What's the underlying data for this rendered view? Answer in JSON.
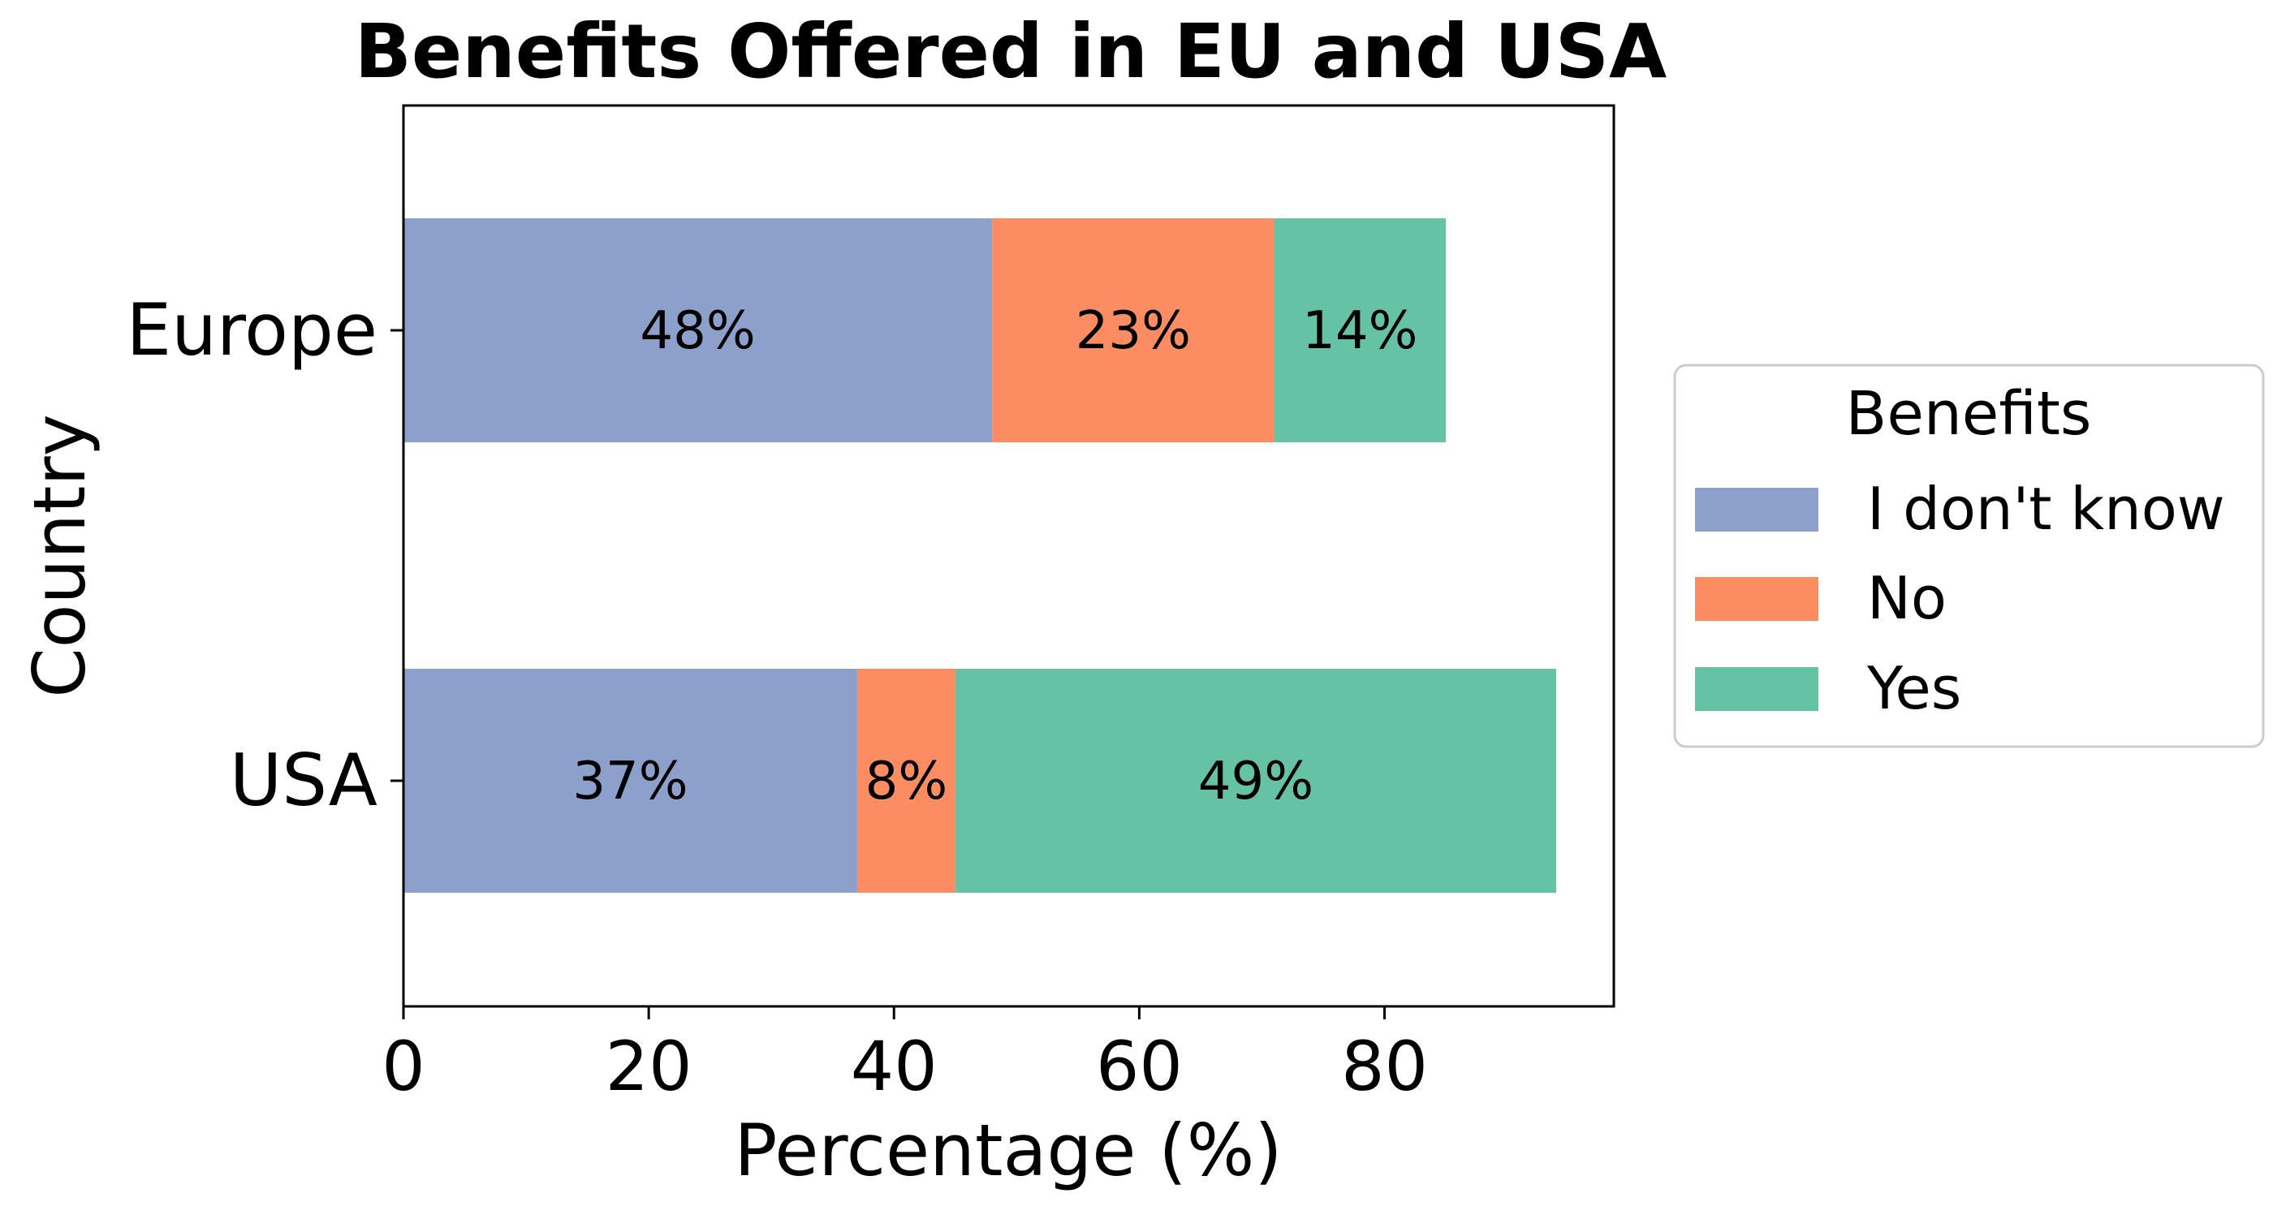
{
  "chart_data": {
    "type": "bar",
    "orientation": "horizontal",
    "stacked": true,
    "title": "Benefits Offered in EU and USA",
    "xlabel": "Percentage (%)",
    "ylabel": "Country",
    "xlim": [
      0,
      98.7
    ],
    "xticks": [
      0,
      20,
      40,
      60,
      80
    ],
    "xtick_labels": [
      "0",
      "20",
      "40",
      "60",
      "80"
    ],
    "categories": [
      "Europe",
      "USA"
    ],
    "series": [
      {
        "name": "I don't know",
        "color": "#8da0cb",
        "values": [
          48,
          37
        ],
        "labels": [
          "48%",
          "37%"
        ]
      },
      {
        "name": "No",
        "color": "#fc8d62",
        "values": [
          23,
          8
        ],
        "labels": [
          "23%",
          "8%"
        ]
      },
      {
        "name": "Yes",
        "color": "#66c2a5",
        "values": [
          14,
          49
        ],
        "labels": [
          "14%",
          "49%"
        ]
      }
    ],
    "legend": {
      "title": "Benefits",
      "placement": "right, outside plot"
    },
    "grid": false
  }
}
